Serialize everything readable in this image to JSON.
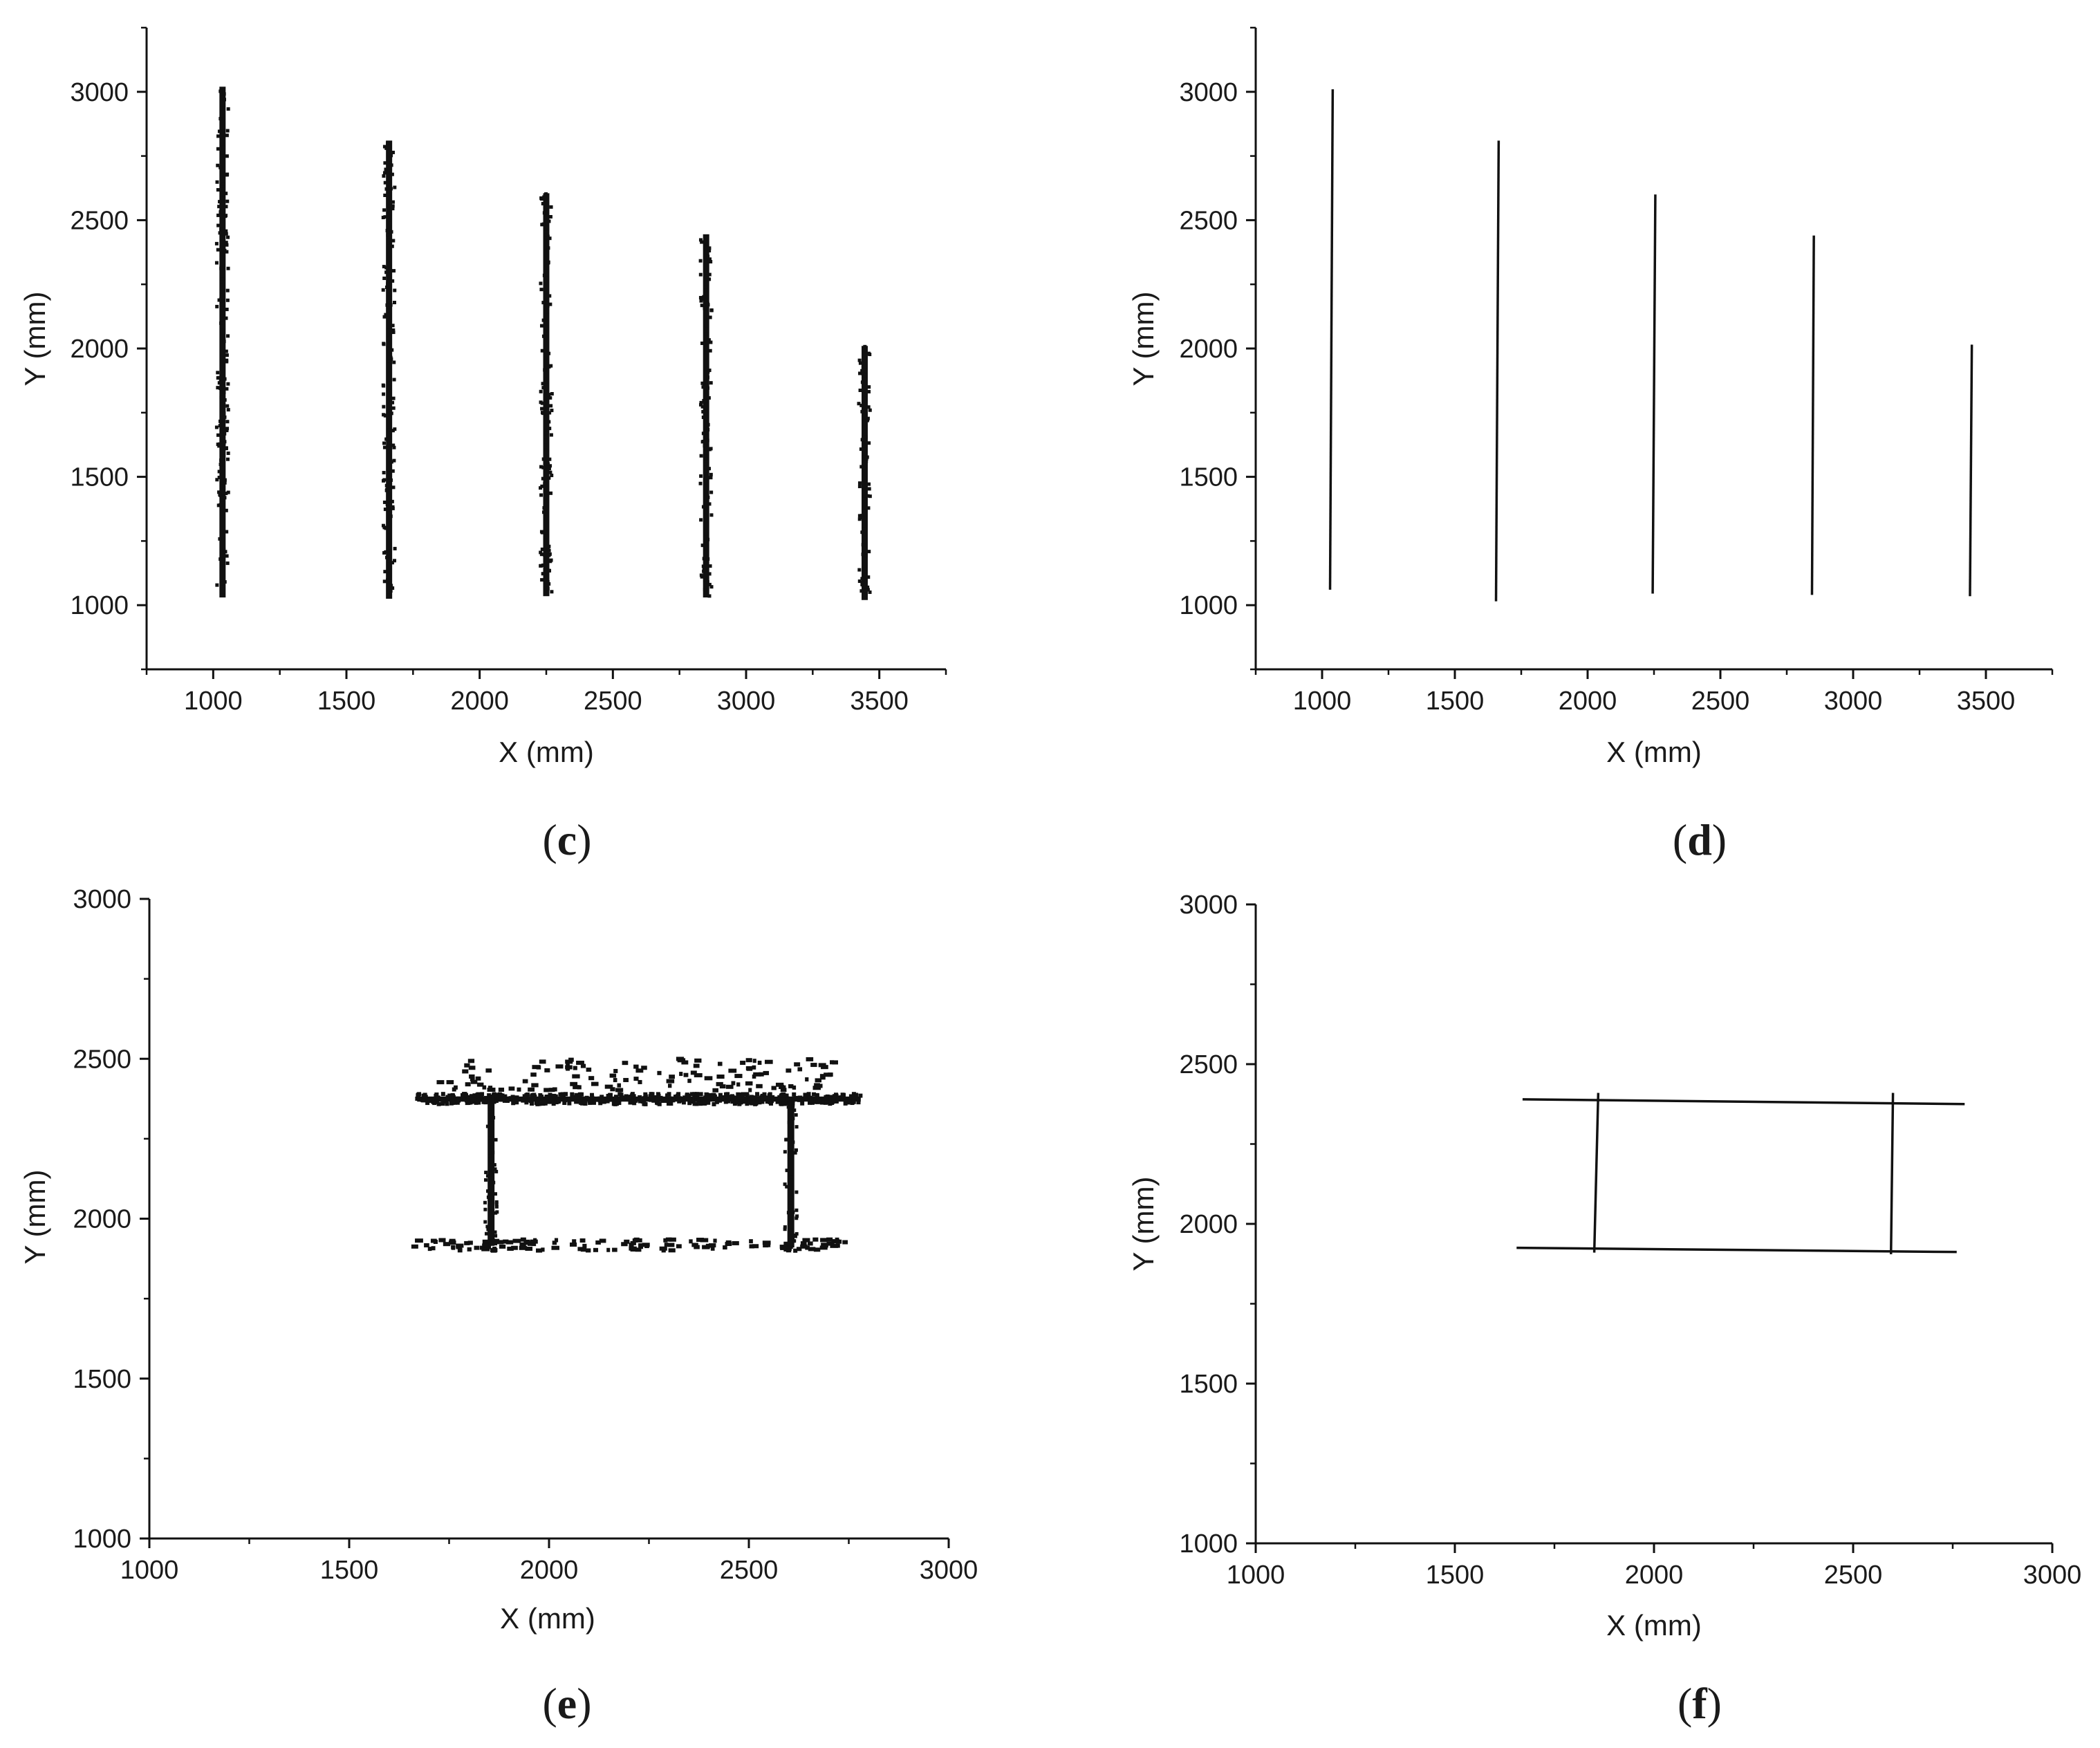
{
  "chart_data": [
    {
      "id": "c",
      "type": "scatter",
      "panel_label": "c",
      "xlabel": "X (mm)",
      "ylabel": "Y (mm)",
      "xlim": [
        750,
        3750
      ],
      "ylim": [
        750,
        3250
      ],
      "xticks": [
        1000,
        1500,
        2000,
        2500,
        3000,
        3500
      ],
      "yticks": [
        1000,
        1500,
        2000,
        2500,
        3000
      ],
      "xminor": [
        750,
        1250,
        1750,
        2250,
        2750,
        3250,
        3750
      ],
      "yminor": [
        750,
        1250,
        1750,
        2250,
        2750,
        3250
      ],
      "grid": false,
      "series": [
        {
          "mode": "dense_points",
          "x": 1035,
          "y_range": [
            1030,
            3020
          ]
        },
        {
          "mode": "dense_points",
          "x": 1660,
          "y_range": [
            1025,
            2810
          ]
        },
        {
          "mode": "dense_points",
          "x": 2250,
          "y_range": [
            1035,
            2605
          ]
        },
        {
          "mode": "dense_points",
          "x": 2850,
          "y_range": [
            1030,
            2445
          ]
        },
        {
          "mode": "dense_points",
          "x": 3445,
          "y_range": [
            1020,
            2010
          ]
        }
      ]
    },
    {
      "id": "d",
      "type": "line",
      "panel_label": "d",
      "xlabel": "X (mm)",
      "ylabel": "Y (mm)",
      "xlim": [
        750,
        3750
      ],
      "ylim": [
        750,
        3250
      ],
      "xticks": [
        1000,
        1500,
        2000,
        2500,
        3000,
        3500
      ],
      "yticks": [
        1000,
        1500,
        2000,
        2500,
        3000
      ],
      "xminor": [
        750,
        1250,
        1750,
        2250,
        2750,
        3250,
        3750
      ],
      "yminor": [
        750,
        1250,
        1750,
        2250,
        2750,
        3250
      ],
      "grid": false,
      "series": [
        {
          "points": [
            [
              1030,
              1060
            ],
            [
              1040,
              3010
            ]
          ]
        },
        {
          "points": [
            [
              1655,
              1015
            ],
            [
              1665,
              2810
            ]
          ]
        },
        {
          "points": [
            [
              2245,
              1045
            ],
            [
              2255,
              2600
            ]
          ]
        },
        {
          "points": [
            [
              2845,
              1040
            ],
            [
              2852,
              2440
            ]
          ]
        },
        {
          "points": [
            [
              3440,
              1035
            ],
            [
              3447,
              2015
            ]
          ]
        }
      ]
    },
    {
      "id": "e",
      "type": "scatter",
      "panel_label": "e",
      "xlabel": "X (mm)",
      "ylabel": "Y (mm)",
      "xlim": [
        1000,
        3000
      ],
      "ylim": [
        1000,
        3000
      ],
      "xticks": [
        1000,
        1500,
        2000,
        2500,
        3000
      ],
      "yticks": [
        1000,
        1500,
        2000,
        2500,
        3000
      ],
      "xminor": [
        1250,
        1750,
        2250,
        2750
      ],
      "yminor": [
        1250,
        1750,
        2250,
        2750
      ],
      "grid": false,
      "series": [
        {
          "mode": "dense_points",
          "x_range": [
            1670,
            2780
          ],
          "y_range": [
            2358,
            2390
          ]
        },
        {
          "mode": "sparse_points",
          "x_range": [
            1720,
            2720
          ],
          "y_range": [
            2400,
            2500
          ]
        },
        {
          "mode": "dense_points",
          "x": 1855,
          "y_range": [
            1915,
            2375
          ]
        },
        {
          "mode": "dense_points",
          "x": 2605,
          "y_range": [
            1910,
            2375
          ]
        },
        {
          "mode": "sparse_points",
          "x_range": [
            1660,
            2750
          ],
          "y_range": [
            1900,
            1935
          ]
        }
      ]
    },
    {
      "id": "f",
      "type": "line",
      "panel_label": "f",
      "xlabel": "X (mm)",
      "ylabel": "Y (mm)",
      "xlim": [
        1000,
        3000
      ],
      "ylim": [
        1000,
        3000
      ],
      "xticks": [
        1000,
        1500,
        2000,
        2500,
        3000
      ],
      "yticks": [
        1000,
        1500,
        2000,
        2500,
        3000
      ],
      "xminor": [
        1250,
        1750,
        2250,
        2750
      ],
      "yminor": [
        1250,
        1750,
        2250,
        2750
      ],
      "grid": false,
      "series": [
        {
          "points": [
            [
              1670,
              2390
            ],
            [
              2780,
              2375
            ]
          ]
        },
        {
          "points": [
            [
              1655,
              1925
            ],
            [
              2760,
              1912
            ]
          ]
        },
        {
          "points": [
            [
              1860,
              2410
            ],
            [
              1850,
              1910
            ]
          ]
        },
        {
          "points": [
            [
              2600,
              2410
            ],
            [
              2595,
              1905
            ]
          ]
        }
      ]
    }
  ]
}
